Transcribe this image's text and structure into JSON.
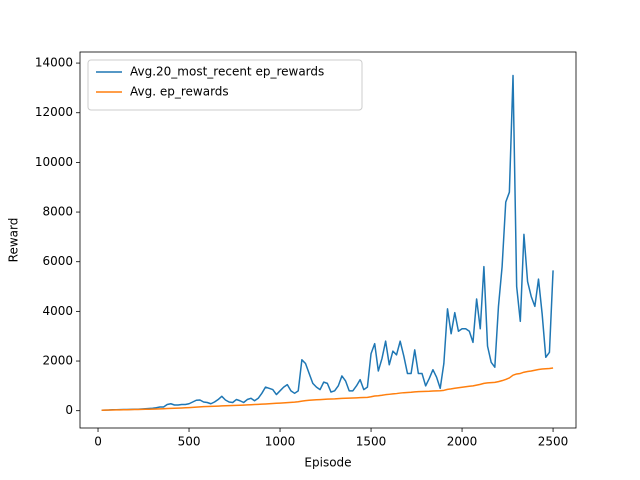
{
  "chart_data": {
    "type": "line",
    "xlabel": "Episode",
    "ylabel": "Reward",
    "x": [
      20,
      40,
      60,
      80,
      100,
      120,
      140,
      160,
      180,
      200,
      220,
      240,
      260,
      280,
      300,
      320,
      340,
      360,
      380,
      400,
      420,
      440,
      460,
      480,
      500,
      520,
      540,
      560,
      580,
      600,
      620,
      640,
      660,
      680,
      700,
      720,
      740,
      760,
      780,
      800,
      820,
      840,
      860,
      880,
      900,
      920,
      940,
      960,
      980,
      1000,
      1020,
      1040,
      1060,
      1080,
      1100,
      1120,
      1140,
      1160,
      1180,
      1200,
      1220,
      1240,
      1260,
      1280,
      1300,
      1320,
      1340,
      1360,
      1380,
      1400,
      1420,
      1440,
      1460,
      1480,
      1500,
      1520,
      1540,
      1560,
      1580,
      1600,
      1620,
      1640,
      1660,
      1680,
      1700,
      1720,
      1740,
      1760,
      1780,
      1800,
      1820,
      1840,
      1860,
      1880,
      1900,
      1920,
      1940,
      1960,
      1980,
      2000,
      2020,
      2040,
      2060,
      2080,
      2100,
      2120,
      2140,
      2160,
      2180,
      2200,
      2220,
      2240,
      2260,
      2280,
      2300,
      2320,
      2340,
      2360,
      2380,
      2400,
      2420,
      2440,
      2460,
      2480,
      2500
    ],
    "series": [
      {
        "name": "Avg.20_most_recent ep_rewards",
        "color": "#1f77b4",
        "values": [
          20,
          25,
          30,
          40,
          40,
          45,
          50,
          50,
          55,
          60,
          60,
          70,
          80,
          90,
          100,
          120,
          150,
          150,
          250,
          280,
          230,
          230,
          250,
          250,
          280,
          350,
          420,
          430,
          350,
          330,
          280,
          350,
          450,
          580,
          430,
          350,
          330,
          450,
          400,
          330,
          450,
          500,
          400,
          500,
          700,
          950,
          900,
          850,
          650,
          800,
          950,
          1050,
          800,
          700,
          800,
          2050,
          1900,
          1500,
          1100,
          950,
          850,
          1150,
          1100,
          750,
          800,
          1000,
          1400,
          1200,
          800,
          800,
          1000,
          1250,
          850,
          950,
          2300,
          2700,
          1600,
          2100,
          2800,
          1850,
          2400,
          2250,
          2800,
          2200,
          1500,
          1500,
          2450,
          1500,
          1500,
          1000,
          1300,
          1650,
          1350,
          900,
          1900,
          4100,
          3100,
          3950,
          3200,
          3300,
          3300,
          3200,
          2750,
          4500,
          3300,
          5800,
          2600,
          1950,
          1750,
          4200,
          5800,
          8400,
          8800,
          13500,
          5000,
          3600,
          7100,
          5200,
          4600,
          4200,
          5300,
          3900,
          2150,
          2350,
          5650
        ]
      },
      {
        "name": "Avg. ep_rewards",
        "color": "#ff7f0e",
        "values": [
          20,
          25,
          28,
          30,
          32,
          35,
          38,
          40,
          43,
          46,
          50,
          53,
          56,
          60,
          65,
          70,
          75,
          80,
          88,
          95,
          100,
          105,
          110,
          118,
          125,
          135,
          145,
          155,
          162,
          170,
          175,
          180,
          185,
          192,
          200,
          205,
          210,
          215,
          220,
          225,
          232,
          240,
          248,
          256,
          264,
          272,
          280,
          290,
          298,
          305,
          315,
          325,
          335,
          345,
          360,
          385,
          405,
          420,
          430,
          440,
          448,
          458,
          465,
          470,
          475,
          485,
          495,
          502,
          508,
          512,
          518,
          525,
          530,
          535,
          560,
          590,
          600,
          620,
          645,
          660,
          675,
          690,
          710,
          725,
          735,
          745,
          760,
          768,
          775,
          780,
          785,
          795,
          800,
          805,
          820,
          860,
          880,
          905,
          925,
          945,
          965,
          985,
          1000,
          1030,
          1060,
          1100,
          1120,
          1130,
          1140,
          1170,
          1210,
          1260,
          1320,
          1430,
          1480,
          1500,
          1550,
          1580,
          1600,
          1630,
          1660,
          1680,
          1690,
          1700,
          1720
        ]
      }
    ],
    "xlim": [
      -99,
      2626
    ],
    "ylim": [
      -697,
      14446
    ],
    "xticks": [
      0,
      500,
      1000,
      1500,
      2000,
      2500
    ],
    "yticks": [
      0,
      2000,
      4000,
      6000,
      8000,
      10000,
      12000,
      14000
    ],
    "legend": "upper left",
    "grid": false
  }
}
